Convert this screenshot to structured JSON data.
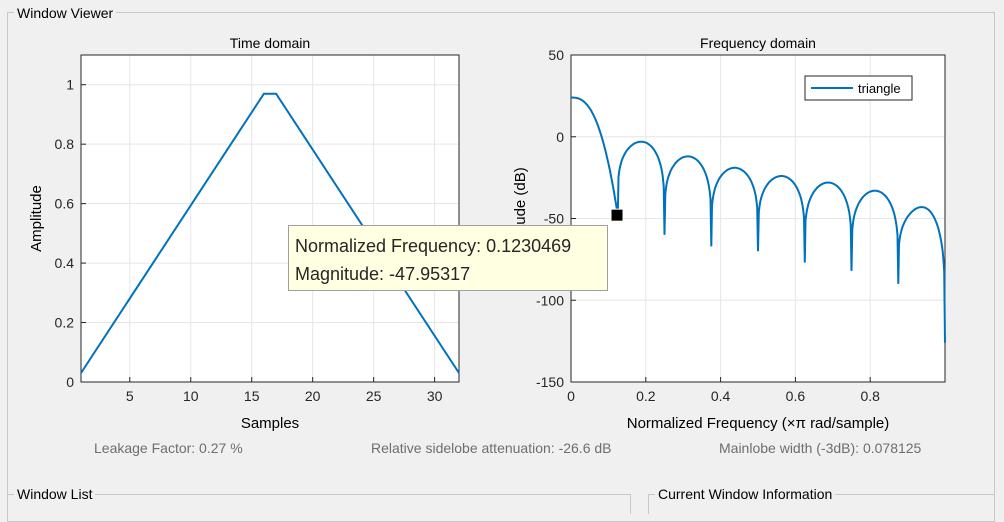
{
  "window_viewer": {
    "title": "Window Viewer"
  },
  "window_list": {
    "title": "Window List"
  },
  "current_window_info": {
    "title": "Current Window Information"
  },
  "stats": {
    "leakage": "Leakage Factor: 0.27 %",
    "sidelobe": "Relative sidelobe attenuation: -26.6 dB",
    "mainlobe": "Mainlobe width (-3dB): 0.078125"
  },
  "datatip": {
    "line1": "Normalized Frequency: 0.1230469",
    "line2": "Magnitude: -47.95317",
    "x": 0.1230469,
    "y": -47.95317
  },
  "colors": {
    "series": "#0072bd",
    "grid": "#e6e6e6",
    "axis": "#262626"
  },
  "chart_data": [
    {
      "type": "line",
      "title": "Time domain",
      "xlabel": "Samples",
      "ylabel": "Amplitude",
      "xlim": [
        1,
        32
      ],
      "ylim": [
        0,
        1.1
      ],
      "xticks": [
        5,
        10,
        15,
        20,
        25,
        30
      ],
      "yticks": [
        0,
        0.2,
        0.4,
        0.6,
        0.8,
        1
      ],
      "ytick_labels": [
        "0",
        "0.2",
        "0.4",
        "0.6",
        "0.8",
        "1"
      ],
      "grid": true,
      "series": [
        {
          "x": [
            1,
            16,
            17,
            32
          ],
          "y": [
            0.0303,
            0.9697,
            0.9697,
            0.0303
          ]
        }
      ]
    },
    {
      "type": "line",
      "title": "Frequency domain",
      "xlabel": "Normalized Frequency  (×π rad/sample)",
      "ylabel": "Magnitude (dB)",
      "xlim": [
        0,
        1
      ],
      "ylim": [
        -150,
        50
      ],
      "xticks": [
        0,
        0.2,
        0.4,
        0.6,
        0.8
      ],
      "xtick_labels": [
        "0",
        "0.2",
        "0.4",
        "0.6",
        "0.8"
      ],
      "yticks": [
        -150,
        -100,
        -50,
        0,
        50
      ],
      "ytick_labels": [
        "-150",
        "-100",
        "-50",
        "0",
        "50"
      ],
      "grid": true,
      "legend": {
        "location": "top-right",
        "entries": [
          "triangle"
        ]
      },
      "series": [
        {
          "name": "triangle",
          "null_depths": [
            -47.95,
            -60,
            -67,
            -70,
            -77,
            -82,
            -90
          ],
          "sidelobe_peaks": [
            -3,
            -12,
            -19,
            -24,
            -28,
            -33,
            -43
          ],
          "dc_value": 24,
          "end_value": -126
        }
      ]
    }
  ]
}
